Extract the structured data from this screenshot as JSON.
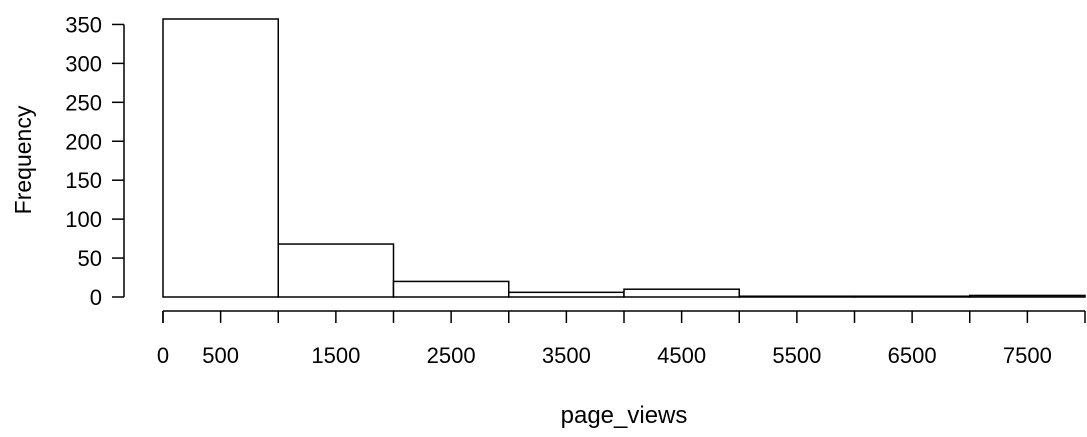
{
  "chart_data": {
    "type": "bar",
    "histogram": true,
    "xlabel": "page_views",
    "ylabel": "Frequency",
    "bins": [
      {
        "start": 0,
        "end": 1000,
        "count": 357
      },
      {
        "start": 1000,
        "end": 2000,
        "count": 68
      },
      {
        "start": 2000,
        "end": 3000,
        "count": 20
      },
      {
        "start": 3000,
        "end": 4000,
        "count": 6
      },
      {
        "start": 4000,
        "end": 5000,
        "count": 10
      },
      {
        "start": 5000,
        "end": 6000,
        "count": 1
      },
      {
        "start": 6000,
        "end": 7000,
        "count": 1
      },
      {
        "start": 7000,
        "end": 8000,
        "count": 2
      }
    ],
    "xlim": [
      0,
      8000
    ],
    "ylim": [
      0,
      357
    ],
    "x_ticks": [
      0,
      1000,
      2000,
      3000,
      4000,
      5000,
      6000,
      7000,
      8000
    ],
    "x_tick_labels": [
      {
        "value": 0,
        "label": "0"
      },
      {
        "value": 500,
        "label": "500"
      },
      {
        "value": 1500,
        "label": "1500"
      },
      {
        "value": 2500,
        "label": "2500"
      },
      {
        "value": 3500,
        "label": "3500"
      },
      {
        "value": 4500,
        "label": "4500"
      },
      {
        "value": 5500,
        "label": "5500"
      },
      {
        "value": 6500,
        "label": "6500"
      },
      {
        "value": 7500,
        "label": "7500"
      }
    ],
    "y_ticks": [
      0,
      50,
      100,
      150,
      200,
      250,
      300,
      350
    ],
    "y_tick_labels": [
      "0",
      "50",
      "100",
      "150",
      "200",
      "250",
      "300",
      "350"
    ],
    "grid": false,
    "colors": {
      "bar_fill": "#ffffff",
      "bar_stroke": "#000000",
      "axis": "#000000"
    }
  }
}
